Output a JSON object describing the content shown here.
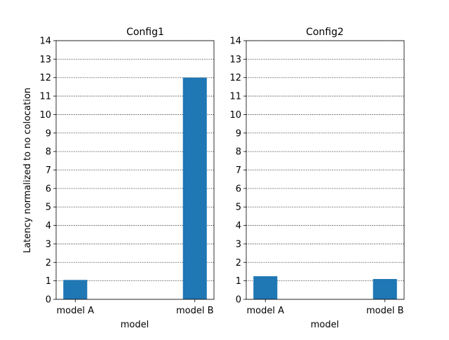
{
  "chart_data": [
    {
      "type": "bar",
      "title": "Config1",
      "xlabel": "model",
      "ylabel": "Latency normalized to no colocation",
      "categories": [
        "model A",
        "model B"
      ],
      "values": [
        1.05,
        12.0
      ],
      "ylim": [
        0,
        14
      ],
      "yticks": [
        "0",
        "1",
        "2",
        "3",
        "4",
        "5",
        "6",
        "7",
        "8",
        "9",
        "10",
        "11",
        "12",
        "13",
        "14"
      ],
      "grid": "y-dotted",
      "bar_color": "#1f77b4"
    },
    {
      "type": "bar",
      "title": "Config2",
      "xlabel": "model",
      "ylabel": "",
      "categories": [
        "model A",
        "model B"
      ],
      "values": [
        1.25,
        1.1
      ],
      "ylim": [
        0,
        14
      ],
      "yticks": [
        "0",
        "1",
        "2",
        "3",
        "4",
        "5",
        "6",
        "7",
        "8",
        "9",
        "10",
        "11",
        "12",
        "13",
        "14"
      ],
      "grid": "y-dotted",
      "bar_color": "#1f77b4"
    }
  ]
}
